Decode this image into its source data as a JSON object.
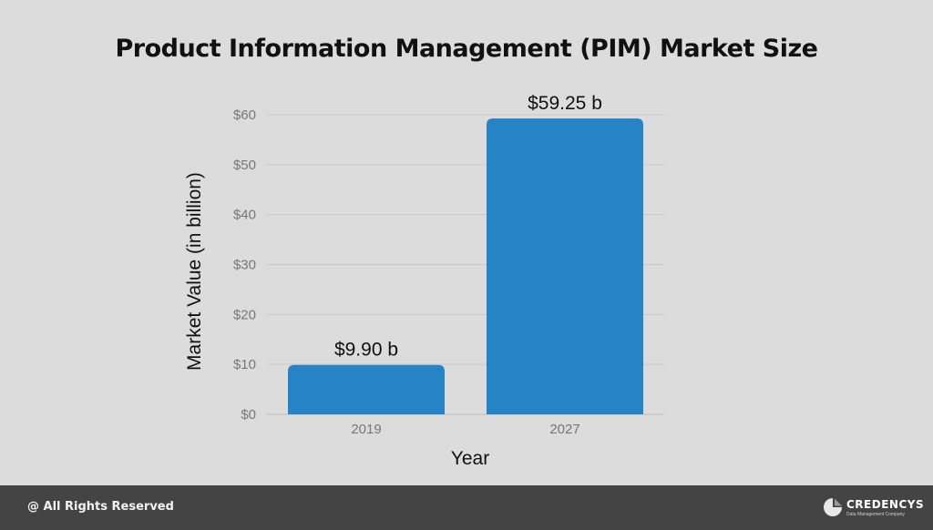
{
  "chart_data": {
    "type": "bar",
    "title": "Product Information Management (PIM) Market Size",
    "xlabel": "Year",
    "ylabel": "Market Value (in billion)",
    "categories": [
      "2019",
      "2027"
    ],
    "values": [
      9.9,
      59.25
    ],
    "data_labels": [
      "$9.90 b",
      "$59.25 b"
    ],
    "y_ticks": [
      0,
      10,
      20,
      30,
      40,
      50,
      60
    ],
    "y_tick_labels": [
      "$0",
      "$10",
      "$20",
      "$30",
      "$40",
      "$50",
      "$60"
    ],
    "ylim": [
      0,
      60
    ],
    "grid": true,
    "bar_color": "#2683c6"
  },
  "footer": {
    "copyright": "@ All Rights Reserved",
    "brand_name": "CREDENCYS",
    "brand_tagline": "Data Management Company"
  },
  "colors": {
    "background": "#dcdcdc",
    "footer_bg": "#444444",
    "gridline": "#c8c8c8",
    "tick_text": "#777777"
  }
}
